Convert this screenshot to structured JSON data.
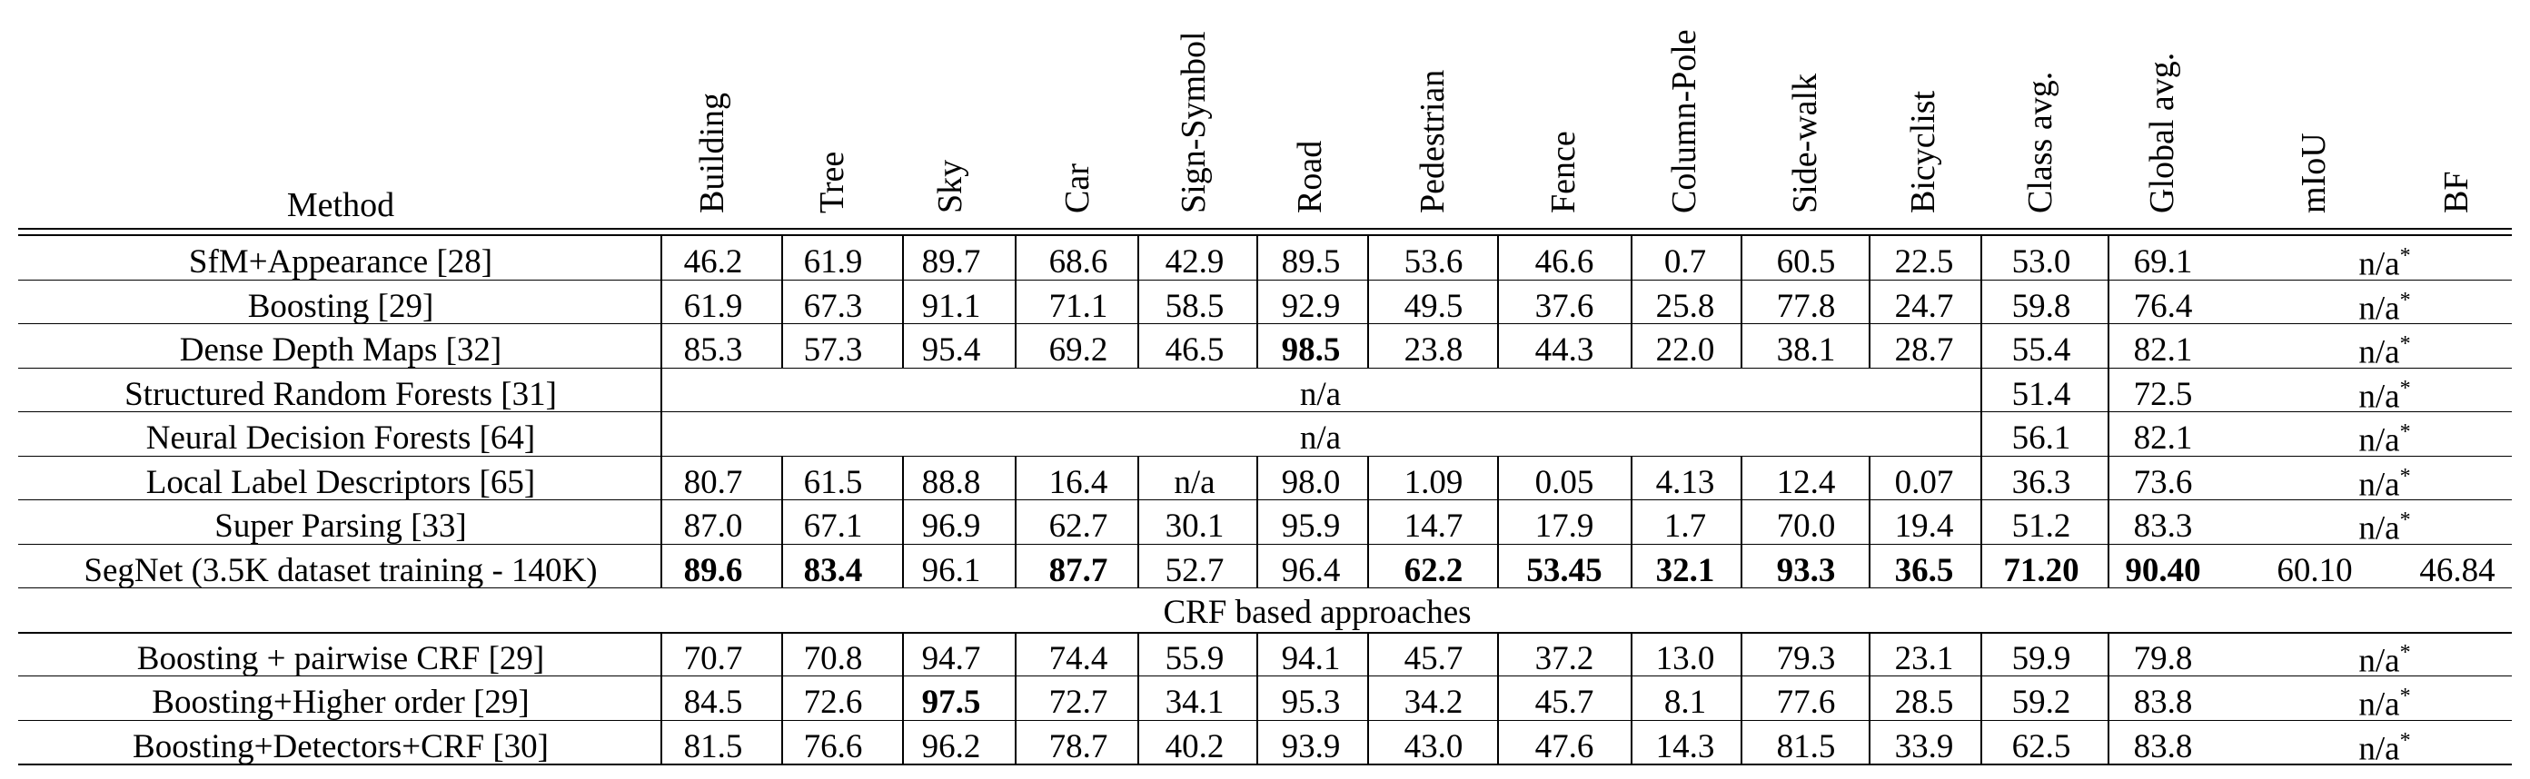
{
  "table": {
    "method_header": "Method",
    "columns": [
      "Building",
      "Tree",
      "Sky",
      "Car",
      "Sign-Symbol",
      "Road",
      "Pedestrian",
      "Fence",
      "Column-Pole",
      "Side-walk",
      "Bicyclist",
      "Class avg.",
      "Global avg.",
      "mIoU",
      "BF"
    ],
    "na_label": "n/a",
    "na_star": "n/a*",
    "section_label": "CRF based approaches",
    "rows": [
      {
        "method": "SfM+Appearance [28]",
        "cells": [
          "46.2",
          "61.9",
          "89.7",
          "68.6",
          "42.9",
          "89.5",
          "53.6",
          "46.6",
          "0.7",
          "60.5",
          "22.5",
          "53.0",
          "69.1"
        ],
        "bold": [],
        "miou_bf": "n/a*"
      },
      {
        "method": "Boosting [29]",
        "cells": [
          "61.9",
          "67.3",
          "91.1",
          "71.1",
          "58.5",
          "92.9",
          "49.5",
          "37.6",
          "25.8",
          "77.8",
          "24.7",
          "59.8",
          "76.4"
        ],
        "bold": [],
        "miou_bf": "n/a*"
      },
      {
        "method": "Dense Depth Maps [32]",
        "cells": [
          "85.3",
          "57.3",
          "95.4",
          "69.2",
          "46.5",
          "98.5",
          "23.8",
          "44.3",
          "22.0",
          "38.1",
          "28.7",
          "55.4",
          "82.1"
        ],
        "bold": [
          5
        ],
        "miou_bf": "n/a*"
      },
      {
        "method": "Structured Random Forests [31]",
        "span": "n/a",
        "cells": [
          "51.4",
          "72.5"
        ],
        "miou_bf": "n/a*"
      },
      {
        "method": "Neural Decision Forests [64]",
        "span": "n/a",
        "cells": [
          "56.1",
          "82.1"
        ],
        "miou_bf": "n/a*"
      },
      {
        "method": "Local Label Descriptors [65]",
        "cells": [
          "80.7",
          "61.5",
          "88.8",
          "16.4",
          "n/a",
          "98.0",
          "1.09",
          "0.05",
          "4.13",
          "12.4",
          "0.07",
          "36.3",
          "73.6"
        ],
        "bold": [],
        "miou_bf": "n/a*"
      },
      {
        "method": "Super Parsing [33]",
        "cells": [
          "87.0",
          "67.1",
          "96.9",
          "62.7",
          "30.1",
          "95.9",
          "14.7",
          "17.9",
          "1.7",
          "70.0",
          "19.4",
          "51.2",
          "83.3"
        ],
        "bold": [],
        "miou_bf": "n/a*"
      },
      {
        "method": "SegNet (3.5K dataset training - 140K)",
        "cells": [
          "89.6",
          "83.4",
          "96.1",
          "87.7",
          "52.7",
          "96.4",
          "62.2",
          "53.45",
          "32.1",
          "93.3",
          "36.5",
          "71.20",
          "90.40"
        ],
        "bold": [
          0,
          1,
          3,
          6,
          7,
          8,
          9,
          10,
          11,
          12
        ],
        "miou": "60.10",
        "bf": "46.84"
      }
    ],
    "crf_rows": [
      {
        "method": "Boosting + pairwise CRF [29]",
        "cells": [
          "70.7",
          "70.8",
          "94.7",
          "74.4",
          "55.9",
          "94.1",
          "45.7",
          "37.2",
          "13.0",
          "79.3",
          "23.1",
          "59.9",
          "79.8"
        ],
        "bold": [],
        "miou_bf": "n/a*"
      },
      {
        "method": "Boosting+Higher order [29]",
        "cells": [
          "84.5",
          "72.6",
          "97.5",
          "72.7",
          "34.1",
          "95.3",
          "34.2",
          "45.7",
          "8.1",
          "77.6",
          "28.5",
          "59.2",
          "83.8"
        ],
        "bold": [
          2
        ],
        "miou_bf": "n/a*"
      },
      {
        "method": "Boosting+Detectors+CRF [30]",
        "cells": [
          "81.5",
          "76.6",
          "96.2",
          "78.7",
          "40.2",
          "93.9",
          "43.0",
          "47.6",
          "14.3",
          "81.5",
          "33.9",
          "62.5",
          "83.8"
        ],
        "bold": [],
        "miou_bf": "n/a*"
      }
    ]
  }
}
